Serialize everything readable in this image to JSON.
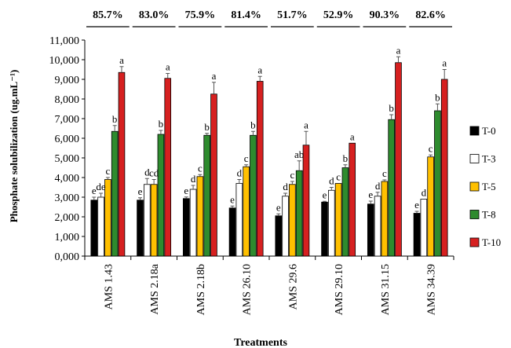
{
  "chart_data": {
    "type": "bar",
    "ylabel": "Phosphate solubilization (ug.mL⁻¹)",
    "xlabel": "Treatments",
    "ylim": [
      0,
      11000
    ],
    "y_tick_values": [
      0,
      1000,
      2000,
      3000,
      4000,
      5000,
      6000,
      7000,
      8000,
      9000,
      10000,
      11000
    ],
    "y_tick_labels": [
      "0,000",
      "1,000",
      "2,000",
      "3,000",
      "4,000",
      "5,000",
      "6,000",
      "7,000",
      "8,000",
      "9,000",
      "10,000",
      "11,000"
    ],
    "grid": false,
    "legend_position": "right",
    "categories": [
      "AMS 1.43",
      "AMS 2.18a",
      "AMS 2.18b",
      "AMS 26.10",
      "AMS 29.6",
      "AMS 29.10",
      "AMS 31.15",
      "AMS 34.39"
    ],
    "percent_labels": [
      "85.7%",
      "83.0%",
      "75.9%",
      "81.4%",
      "51.7%",
      "52.9%",
      "90.3%",
      "82.6%"
    ],
    "series": [
      {
        "name": "T-0",
        "color": "#000000",
        "values": [
          2850,
          2850,
          2930,
          2450,
          2050,
          2750,
          2650,
          2180
        ],
        "errors": [
          150,
          120,
          80,
          100,
          100,
          40,
          150,
          100
        ],
        "letters": [
          "e",
          "e",
          "e",
          "e",
          "e",
          "e",
          "e",
          "e"
        ]
      },
      {
        "name": "T-3",
        "color": "#ffffff",
        "values": [
          3000,
          3650,
          3400,
          3700,
          3050,
          3350,
          3050,
          2900
        ],
        "errors": [
          200,
          300,
          200,
          200,
          150,
          150,
          200,
          0
        ],
        "letters": [
          "de",
          "d",
          "d",
          "d",
          "d",
          "d",
          "d",
          "d"
        ]
      },
      {
        "name": "T-5",
        "color": "#FFC000",
        "values": [
          3900,
          3650,
          4050,
          4550,
          3650,
          3700,
          3800,
          5050
        ],
        "errors": [
          100,
          250,
          100,
          100,
          150,
          0,
          80,
          100
        ],
        "letters": [
          "c",
          "cd",
          "c",
          "c",
          "c",
          "c",
          "c",
          "c"
        ]
      },
      {
        "name": "T-8",
        "color": "#2E8B2E",
        "values": [
          6350,
          6200,
          6150,
          6150,
          4350,
          4500,
          6950,
          7400
        ],
        "errors": [
          300,
          200,
          100,
          200,
          500,
          150,
          250,
          350
        ],
        "letters": [
          "b",
          "b",
          "b",
          "b",
          "ab",
          "b",
          "b",
          "b"
        ]
      },
      {
        "name": "T-10",
        "color": "#D62020",
        "values": [
          9350,
          9050,
          8250,
          8900,
          5650,
          5750,
          9850,
          9000
        ],
        "errors": [
          300,
          250,
          600,
          250,
          700,
          0,
          300,
          500
        ],
        "letters": [
          "a",
          "a",
          "a",
          "a",
          "a",
          "a",
          "a",
          "a"
        ]
      }
    ]
  }
}
